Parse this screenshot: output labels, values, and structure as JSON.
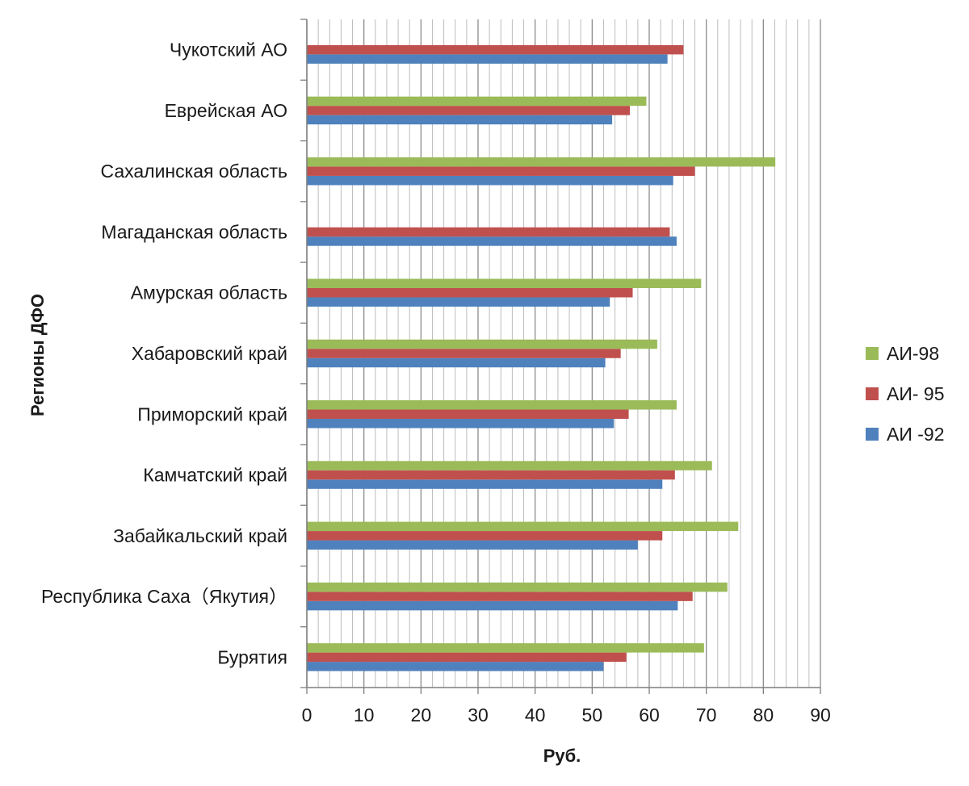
{
  "chart_data": {
    "type": "bar",
    "orientation": "horizontal",
    "title": "",
    "xlabel": "Руб.",
    "ylabel": "Регионы ДФО",
    "xlim": [
      0,
      90
    ],
    "x_ticks": [
      "0",
      "10",
      "20",
      "30",
      "40",
      "50",
      "60",
      "70",
      "80",
      "90"
    ],
    "grid": true,
    "legend_position": "right",
    "categories": [
      "Бурятия",
      "Республика Саха（Якутия）",
      "Забайкальский край",
      "Камчатский край",
      "Приморский край",
      "Хабаровский край",
      "Амурская область",
      "Магаданская область",
      "Сахалинская область",
      "Еврейская АО",
      "Чукотский АО"
    ],
    "series": [
      {
        "name": "АИ -92",
        "color": "#4f81bd",
        "values": [
          52,
          65,
          58,
          62.3,
          53.8,
          52.3,
          53.1,
          64.8,
          64.2,
          53.5,
          63.2
        ]
      },
      {
        "name": "АИ- 95",
        "color": "#c0504d",
        "values": [
          56,
          67.6,
          62.3,
          64.5,
          56.4,
          55,
          57.1,
          63.6,
          68,
          56.6,
          66
        ]
      },
      {
        "name": "АИ-98",
        "color": "#9bbb59",
        "values": [
          69.6,
          73.7,
          75.6,
          71,
          64.8,
          61.4,
          69.1,
          null,
          82.1,
          59.5,
          null
        ]
      }
    ],
    "legend_order": [
      "АИ-98",
      "АИ- 95",
      "АИ -92"
    ]
  }
}
